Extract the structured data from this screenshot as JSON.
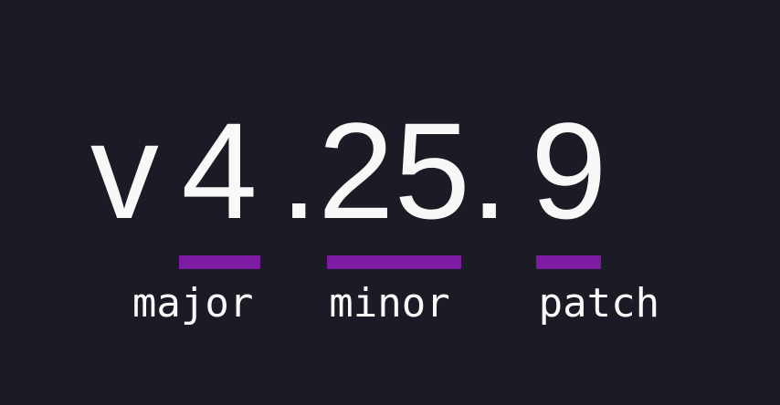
{
  "page": {
    "background_color": "#1a1b24",
    "accent_color": "#7b1ca3",
    "text_color": "#f8f8f8"
  },
  "version": {
    "full": "v4.25.9",
    "prefix": "v",
    "separator": ".",
    "components": [
      {
        "value": "4",
        "label": "major"
      },
      {
        "value": "25",
        "label": "minor"
      },
      {
        "value": "9",
        "label": "patch"
      }
    ]
  }
}
